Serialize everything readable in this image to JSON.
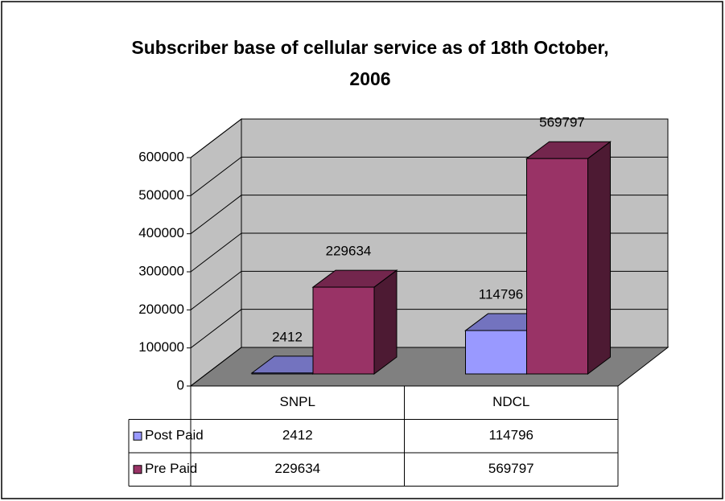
{
  "chart_data": {
    "type": "bar",
    "title": "Subscriber base of cellular service as of 18th October, 2006",
    "categories": [
      "SNPL",
      "NDCL"
    ],
    "series": [
      {
        "name": "Post Paid",
        "color": "#9999ff",
        "values": [
          2412,
          114796
        ]
      },
      {
        "name": "Pre Paid",
        "color": "#993366",
        "values": [
          229634,
          569797
        ]
      }
    ],
    "ylim": [
      0,
      600000
    ],
    "yticks": [
      0,
      100000,
      200000,
      300000,
      400000,
      500000,
      600000
    ],
    "grid": true,
    "data_table": true
  }
}
